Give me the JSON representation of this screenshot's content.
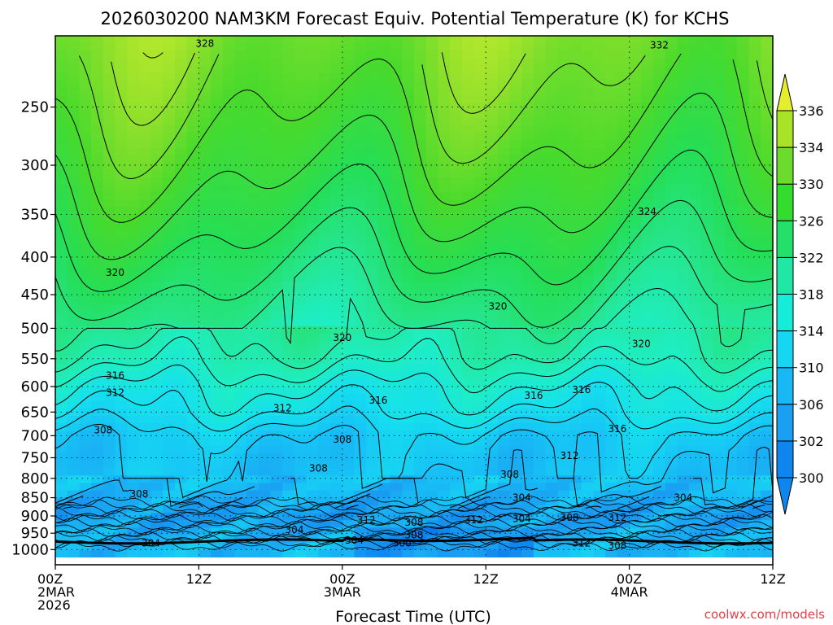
{
  "chart_data": {
    "type": "heatmap",
    "title": "2026030200 NAM3KM Forecast Equiv. Potential Temperature (K) for KCHS",
    "xlabel": "Forecast Time (UTC)",
    "ylabel": "",
    "x_ticks": [
      {
        "hour": 0,
        "lines": [
          "00Z",
          "2MAR",
          "2026"
        ]
      },
      {
        "hour": 12,
        "lines": [
          "12Z"
        ]
      },
      {
        "hour": 24,
        "lines": [
          "00Z",
          "3MAR"
        ]
      },
      {
        "hour": 36,
        "lines": [
          "12Z"
        ]
      },
      {
        "hour": 48,
        "lines": [
          "00Z",
          "4MAR"
        ]
      },
      {
        "hour": 60,
        "lines": [
          "12Z"
        ]
      }
    ],
    "xlim": [
      0,
      60
    ],
    "y_ticks": [
      250,
      300,
      350,
      400,
      450,
      500,
      550,
      600,
      650,
      700,
      750,
      800,
      850,
      900,
      950,
      1000
    ],
    "ylim": [
      200,
      1025
    ],
    "y_scale": "log",
    "grid": "dotted",
    "colorbar": {
      "levels": [
        300,
        302,
        306,
        310,
        314,
        318,
        322,
        326,
        330,
        334,
        336
      ],
      "tick_labels": [
        "300",
        "302",
        "306",
        "310",
        "314",
        "318",
        "322",
        "326",
        "330",
        "334",
        "336"
      ],
      "colors": [
        "#0f86ee",
        "#1a9ff2",
        "#17b8f4",
        "#16d6f2",
        "#16ecd8",
        "#1fe8a6",
        "#22e06a",
        "#33dd2e",
        "#6cdc2c",
        "#a7e428",
        "#e4ee2a"
      ],
      "placement": "right"
    },
    "color_table": [
      [
        296,
        "#0a64e0"
      ],
      [
        300,
        "#0f86ee"
      ],
      [
        304,
        "#1a9ff2"
      ],
      [
        308,
        "#17c3f6"
      ],
      [
        312,
        "#16e0ee"
      ],
      [
        316,
        "#1eeec4"
      ],
      [
        320,
        "#25e690"
      ],
      [
        324,
        "#25de55"
      ],
      [
        328,
        "#49da2c"
      ],
      [
        332,
        "#8ee02b"
      ],
      [
        336,
        "#c9ec2c"
      ]
    ],
    "profile_levels_hPa": [
      200,
      250,
      300,
      350,
      400,
      450,
      500,
      550,
      600,
      650,
      700,
      750,
      800,
      850,
      900,
      950,
      1000
    ],
    "profile_values_K": [
      331,
      329,
      327,
      325,
      323,
      321,
      319,
      317,
      314,
      312,
      309,
      308,
      308,
      306,
      304,
      306,
      307
    ],
    "contour_labels": [
      {
        "hour": 12.5,
        "p": 205,
        "text": "328"
      },
      {
        "hour": 50.5,
        "p": 206,
        "text": "332"
      },
      {
        "hour": 49.5,
        "p": 347,
        "text": "324"
      },
      {
        "hour": 5.0,
        "p": 420,
        "text": "320"
      },
      {
        "hour": 37.0,
        "p": 467,
        "text": "320"
      },
      {
        "hour": 24.0,
        "p": 515,
        "text": "320"
      },
      {
        "hour": 49.0,
        "p": 525,
        "text": "320"
      },
      {
        "hour": 5.0,
        "p": 580,
        "text": "316"
      },
      {
        "hour": 5.0,
        "p": 612,
        "text": "312"
      },
      {
        "hour": 27.0,
        "p": 627,
        "text": "316"
      },
      {
        "hour": 40.0,
        "p": 617,
        "text": "316"
      },
      {
        "hour": 44.0,
        "p": 606,
        "text": "316"
      },
      {
        "hour": 19.0,
        "p": 642,
        "text": "312"
      },
      {
        "hour": 47.0,
        "p": 685,
        "text": "316"
      },
      {
        "hour": 4.0,
        "p": 688,
        "text": "308"
      },
      {
        "hour": 24.0,
        "p": 708,
        "text": "308"
      },
      {
        "hour": 43.0,
        "p": 745,
        "text": "312"
      },
      {
        "hour": 22.0,
        "p": 775,
        "text": "308"
      },
      {
        "hour": 38.0,
        "p": 790,
        "text": "308"
      },
      {
        "hour": 7.0,
        "p": 840,
        "text": "308"
      },
      {
        "hour": 39.0,
        "p": 850,
        "text": "304"
      },
      {
        "hour": 52.5,
        "p": 850,
        "text": "304"
      },
      {
        "hour": 26.0,
        "p": 912,
        "text": "312"
      },
      {
        "hour": 35.0,
        "p": 912,
        "text": "312"
      },
      {
        "hour": 39.0,
        "p": 908,
        "text": "304"
      },
      {
        "hour": 43.0,
        "p": 905,
        "text": "308"
      },
      {
        "hour": 47.0,
        "p": 905,
        "text": "312"
      },
      {
        "hour": 30.0,
        "p": 918,
        "text": "308"
      },
      {
        "hour": 20.0,
        "p": 940,
        "text": "304"
      },
      {
        "hour": 30.0,
        "p": 955,
        "text": "308"
      },
      {
        "hour": 8.0,
        "p": 980,
        "text": "304"
      },
      {
        "hour": 25.0,
        "p": 972,
        "text": "304"
      },
      {
        "hour": 29.0,
        "p": 980,
        "text": "300"
      },
      {
        "hour": 44.0,
        "p": 980,
        "text": "312"
      },
      {
        "hour": 47.0,
        "p": 988,
        "text": "308"
      }
    ]
  },
  "credit": "coolwx.com/models"
}
